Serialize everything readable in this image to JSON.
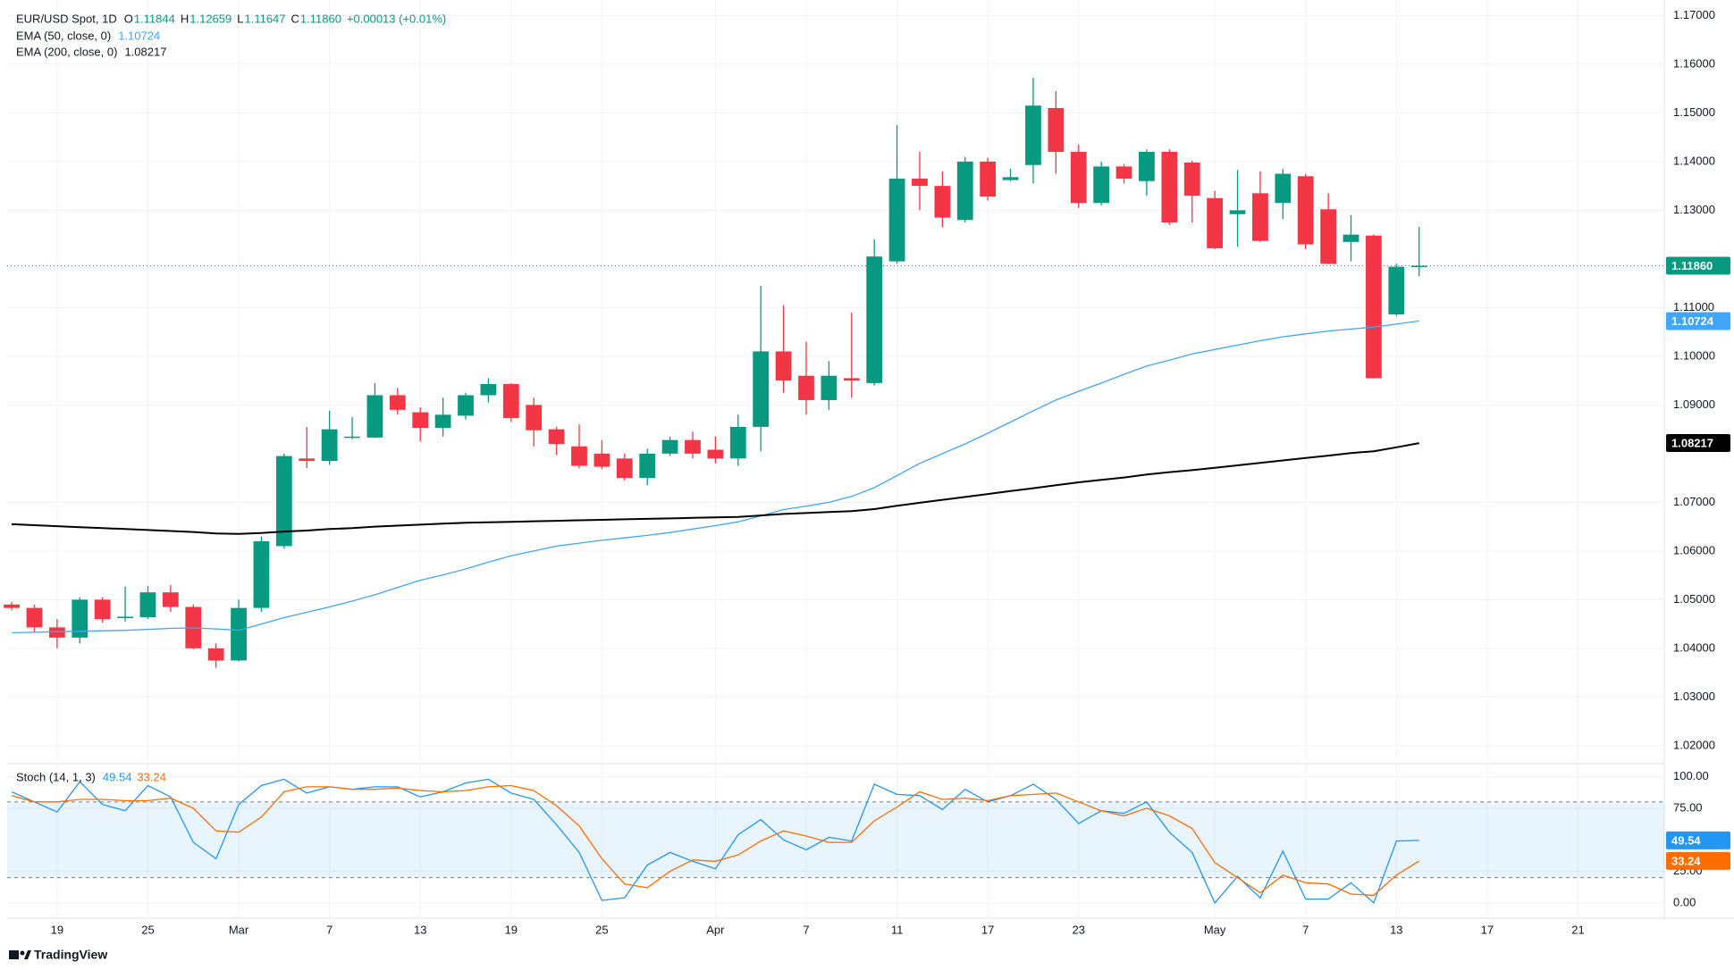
{
  "chart_data": [
    {
      "type": "candlestick",
      "title": "EUR/USD Spot, 1D",
      "ohlc_letters": [
        "O",
        "H",
        "L",
        "C"
      ],
      "last_close_label": "1.11860",
      "change_label": "+0.00013 (+0.01%)",
      "categories": [
        null,
        null,
        "19",
        null,
        null,
        null,
        "25",
        null,
        null,
        null,
        "Mar",
        null,
        null,
        null,
        "7",
        null,
        null,
        null,
        "13",
        null,
        null,
        null,
        "19",
        null,
        null,
        null,
        "25",
        null,
        null,
        null,
        null,
        "Apr",
        null,
        null,
        null,
        "7",
        null,
        null,
        null,
        "11",
        null,
        null,
        null,
        "17",
        null,
        null,
        null,
        "23",
        null,
        null,
        null,
        null,
        null,
        "May",
        null,
        null,
        null,
        "7",
        null,
        null,
        null,
        "13",
        null,
        null,
        null,
        "17",
        null,
        null,
        null,
        "21",
        null,
        null,
        null
      ],
      "open": [
        1.049,
        1.0483,
        1.0443,
        1.0422,
        1.05,
        1.0462,
        1.0464,
        1.0515,
        1.0485,
        1.04,
        1.0375,
        1.0483,
        1.061,
        1.079,
        1.0785,
        1.0833,
        1.0833,
        1.092,
        1.0885,
        1.0853,
        1.0878,
        1.092,
        1.0943,
        1.09,
        1.085,
        1.0815,
        1.08,
        1.079,
        1.075,
        1.08,
        1.0828,
        1.0808,
        1.079,
        1.0855,
        1.101,
        1.096,
        1.091,
        1.0955,
        1.0945,
        1.1195,
        1.1365,
        1.135,
        1.128,
        1.14,
        1.1362,
        1.1393,
        1.151,
        1.142,
        1.1315,
        1.139,
        1.136,
        1.142,
        1.1398,
        1.1325,
        1.1292,
        1.1335,
        1.1315,
        1.137,
        1.1302,
        1.1235,
        1.1248,
        1.1086,
        1.11844,
        null,
        null,
        null,
        null,
        null,
        null,
        null,
        null,
        null,
        null
      ],
      "high": [
        1.0495,
        1.049,
        1.046,
        1.0505,
        1.0505,
        1.0527,
        1.0528,
        1.053,
        1.049,
        1.041,
        1.05,
        1.063,
        1.08,
        1.0855,
        1.0888,
        1.0875,
        1.0945,
        1.0935,
        1.0895,
        1.0915,
        1.0925,
        1.0955,
        1.0945,
        1.0915,
        1.0855,
        1.086,
        1.0828,
        1.08,
        1.081,
        1.0835,
        1.0845,
        1.0835,
        1.088,
        1.1145,
        1.1105,
        1.103,
        1.099,
        1.109,
        1.124,
        1.1475,
        1.142,
        1.138,
        1.141,
        1.1408,
        1.1385,
        1.1572,
        1.1545,
        1.1435,
        1.14,
        1.1395,
        1.1425,
        1.1425,
        1.1402,
        1.134,
        1.1383,
        1.138,
        1.1385,
        1.1375,
        1.1335,
        1.129,
        1.125,
        1.119,
        1.12659,
        null,
        null,
        null,
        null,
        null,
        null,
        null,
        null,
        null,
        null
      ],
      "low": [
        1.0478,
        1.0433,
        1.04,
        1.041,
        1.0453,
        1.0455,
        1.046,
        1.0475,
        1.0398,
        1.036,
        1.0373,
        1.0475,
        1.0605,
        1.077,
        1.0777,
        1.083,
        1.0832,
        1.088,
        1.0825,
        1.0835,
        1.087,
        1.0905,
        1.0865,
        1.0815,
        1.0797,
        1.077,
        1.0768,
        1.0745,
        1.0735,
        1.0795,
        1.079,
        1.078,
        1.0775,
        1.0805,
        1.0925,
        1.088,
        1.089,
        1.0915,
        1.094,
        1.119,
        1.13,
        1.1265,
        1.1275,
        1.132,
        1.136,
        1.1355,
        1.1375,
        1.1305,
        1.131,
        1.1355,
        1.133,
        1.127,
        1.1275,
        1.122,
        1.1225,
        1.1235,
        1.1282,
        1.122,
        1.119,
        1.1195,
        1.0955,
        1.1083,
        1.11647,
        null,
        null,
        null,
        null,
        null,
        null,
        null,
        null,
        null,
        null
      ],
      "close": [
        1.0483,
        1.0443,
        1.0422,
        1.05,
        1.046,
        1.0465,
        1.0515,
        1.0485,
        1.04,
        1.0375,
        1.0483,
        1.062,
        1.0795,
        1.0785,
        1.085,
        1.0835,
        1.092,
        1.089,
        1.0853,
        1.088,
        1.092,
        1.0943,
        1.0873,
        1.0848,
        1.082,
        1.0775,
        1.0773,
        1.075,
        1.08,
        1.0828,
        1.08,
        1.079,
        1.0855,
        1.101,
        1.095,
        1.091,
        1.096,
        1.095,
        1.1205,
        1.1365,
        1.135,
        1.1285,
        1.14,
        1.1328,
        1.1368,
        1.1515,
        1.142,
        1.1315,
        1.139,
        1.1365,
        1.142,
        1.1275,
        1.133,
        1.1222,
        1.13,
        1.1237,
        1.1375,
        1.123,
        1.119,
        1.125,
        1.0955,
        1.1184,
        1.1186,
        null,
        null,
        null,
        null,
        null,
        null,
        null,
        null,
        null,
        null
      ],
      "up_color": "#089981",
      "down_color": "#f23645",
      "series": [
        {
          "name": "EMA (50, close, 0)",
          "color": "#42a5f5",
          "values": [
            1.0432,
            1.0433,
            1.0434,
            1.0435,
            1.0436,
            1.0437,
            1.0439,
            1.0441,
            1.0442,
            1.044,
            1.0437,
            1.045,
            1.0463,
            1.0474,
            1.0485,
            1.0497,
            1.051,
            1.0525,
            1.054,
            1.0551,
            1.0563,
            1.0577,
            1.059,
            1.06,
            1.061,
            1.0616,
            1.0622,
            1.0627,
            1.0632,
            1.0638,
            1.0645,
            1.0652,
            1.066,
            1.0672,
            1.0685,
            1.0692,
            1.07,
            1.0712,
            1.073,
            1.0755,
            1.078,
            1.08,
            1.082,
            1.0842,
            1.0865,
            1.0888,
            1.091,
            1.0928,
            1.0945,
            1.0963,
            1.098,
            1.0992,
            1.1005,
            1.1014,
            1.1023,
            1.1032,
            1.104,
            1.1046,
            1.1052,
            1.1056,
            1.106,
            1.1066,
            1.10724,
            null,
            null,
            null,
            null,
            null,
            null,
            null,
            null,
            null,
            null
          ]
        },
        {
          "name": "EMA (200, close, 0)",
          "color": "#000000",
          "values": [
            1.0655,
            1.0653,
            1.0651,
            1.0649,
            1.0647,
            1.0645,
            1.0643,
            1.0641,
            1.0639,
            1.0636,
            1.0635,
            1.0637,
            1.064,
            1.0642,
            1.0645,
            1.0647,
            1.065,
            1.0652,
            1.0654,
            1.0656,
            1.0658,
            1.0659,
            1.066,
            1.0661,
            1.0662,
            1.0663,
            1.0664,
            1.0665,
            1.0666,
            1.0667,
            1.0668,
            1.0669,
            1.067,
            1.0673,
            1.0676,
            1.0678,
            1.068,
            1.0682,
            1.0686,
            1.0693,
            1.0699,
            1.0705,
            1.0711,
            1.0717,
            1.0723,
            1.0729,
            1.0735,
            1.0741,
            1.0746,
            1.0751,
            1.0757,
            1.0762,
            1.0766,
            1.0771,
            1.0776,
            1.0781,
            1.0786,
            1.0791,
            1.0796,
            1.0801,
            1.0805,
            1.0813,
            1.08217,
            null,
            null,
            null,
            null,
            null,
            null,
            null,
            null,
            null,
            null
          ]
        }
      ],
      "ylim": [
        1.0163,
        1.1732
      ],
      "yticks": [
        {
          "value": 1.17,
          "label": "1.17000"
        },
        {
          "value": 1.16,
          "label": "1.16000"
        },
        {
          "value": 1.15,
          "label": "1.15000"
        },
        {
          "value": 1.14,
          "label": "1.14000"
        },
        {
          "value": 1.13,
          "label": "1.13000"
        },
        {
          "value": 1.11,
          "label": "1.11000"
        },
        {
          "value": 1.1,
          "label": "1.10000"
        },
        {
          "value": 1.09,
          "label": "1.09000"
        },
        {
          "value": 1.07,
          "label": "1.07000"
        },
        {
          "value": 1.06,
          "label": "1.06000"
        },
        {
          "value": 1.05,
          "label": "1.05000"
        },
        {
          "value": 1.04,
          "label": "1.04000"
        },
        {
          "value": 1.03,
          "label": "1.03000"
        },
        {
          "value": 1.02,
          "label": "1.02000"
        }
      ],
      "grid": true
    },
    {
      "type": "line",
      "title": "Stoch (14, 1, 3)",
      "series": [
        {
          "name": "%K",
          "color": "#2196f3",
          "values": [
            88,
            80,
            72,
            96,
            78,
            73,
            93,
            84,
            48,
            35,
            78,
            93,
            98,
            87,
            92,
            90,
            92,
            92,
            84,
            88,
            95,
            98,
            87,
            82,
            62,
            40,
            2,
            4,
            30,
            40,
            33,
            27,
            54,
            66,
            50,
            42,
            52,
            49,
            94,
            86,
            85,
            74,
            90,
            80,
            85,
            94,
            82,
            63,
            73,
            71,
            80,
            56,
            40,
            0,
            21,
            4,
            41,
            3,
            3,
            16,
            0,
            49,
            49.54,
            null,
            null,
            null,
            null,
            null,
            null,
            null,
            null,
            null,
            null
          ]
        },
        {
          "name": "%D",
          "color": "#ff6d00",
          "values": [
            85,
            80,
            80,
            82,
            82,
            81,
            81,
            83,
            75,
            57,
            56,
            68,
            88,
            92,
            92,
            90,
            90,
            91,
            89,
            88,
            89,
            92,
            93,
            89,
            77,
            61,
            35,
            15,
            12,
            25,
            34,
            33,
            38,
            49,
            57,
            53,
            48,
            48,
            65,
            76,
            88,
            82,
            83,
            81,
            85,
            86,
            87,
            80,
            73,
            69,
            75,
            69,
            59,
            32,
            20,
            8,
            22,
            16,
            15,
            7,
            6,
            22,
            33.24,
            null,
            null,
            null,
            null,
            null,
            null,
            null,
            null,
            null,
            null
          ]
        }
      ],
      "bands": [
        20,
        80
      ],
      "band_color": "rgba(33,150,243,0.1)",
      "ylim": [
        -11.4,
        109.6
      ],
      "yticks": [
        {
          "value": 100,
          "label": "100.00"
        },
        {
          "value": 75,
          "label": "75.00"
        },
        {
          "value": 25,
          "label": "25.00"
        },
        {
          "value": 0,
          "label": "0.00"
        }
      ]
    }
  ],
  "branding": "TradingView"
}
